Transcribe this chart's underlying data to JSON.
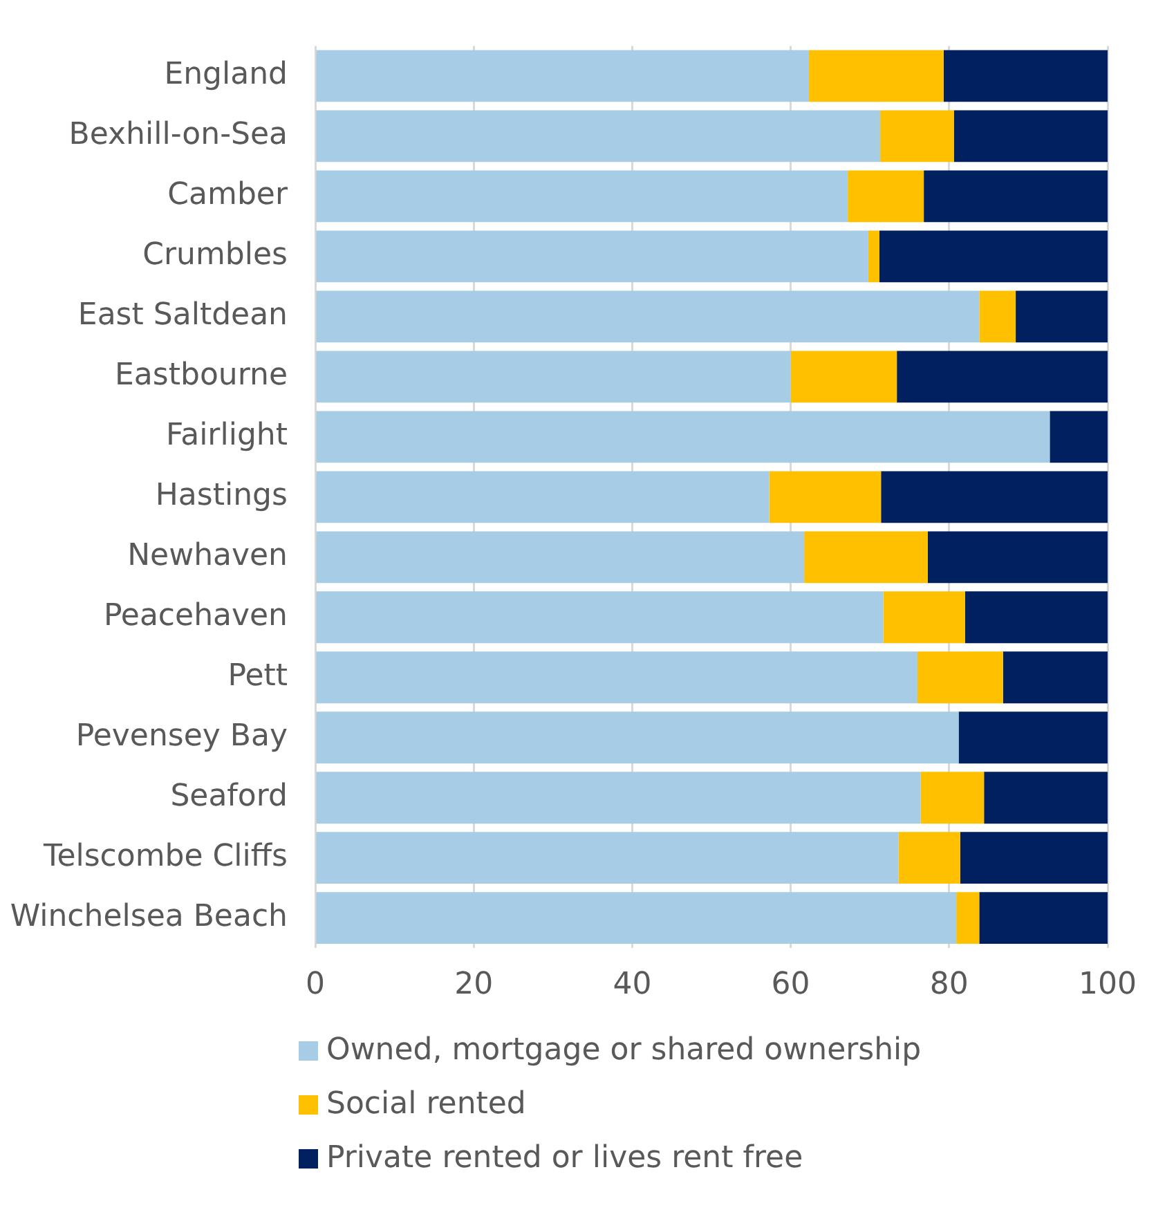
{
  "chart_data": {
    "type": "bar",
    "orientation": "horizontal",
    "stacked": true,
    "categories": [
      "England",
      "Bexhill-on-Sea",
      "Camber",
      "Crumbles",
      "East Saltdean",
      "Eastbourne",
      "Fairlight",
      "Hastings",
      "Newhaven",
      "Peacehaven",
      "Pett",
      "Pevensey Bay",
      "Seaford",
      "Telscombe Cliffs",
      "Winchelsea Beach"
    ],
    "series": [
      {
        "name": "Owned, mortgage or shared ownership",
        "color": "#a6cde5",
        "values": [
          62.3,
          71.3,
          67.2,
          69.8,
          83.8,
          60.0,
          92.7,
          57.3,
          61.7,
          71.7,
          76.0,
          81.2,
          76.4,
          73.6,
          80.9
        ]
      },
      {
        "name": "Social rented",
        "color": "#ffc000",
        "values": [
          17.0,
          9.3,
          9.6,
          1.4,
          4.6,
          13.4,
          0,
          14.1,
          15.6,
          10.3,
          10.8,
          0,
          8.0,
          7.8,
          2.9
        ]
      },
      {
        "name": "Private rented or lives rent free",
        "color": "#002060",
        "values": [
          20.7,
          19.4,
          23.2,
          28.8,
          11.6,
          26.6,
          7.3,
          28.6,
          22.7,
          18.0,
          13.2,
          18.8,
          15.6,
          18.6,
          16.2
        ]
      }
    ],
    "xlim": [
      0,
      100
    ],
    "xticks": [
      0,
      20,
      40,
      60,
      80,
      100
    ],
    "grid": "x",
    "legend": "bottom"
  }
}
